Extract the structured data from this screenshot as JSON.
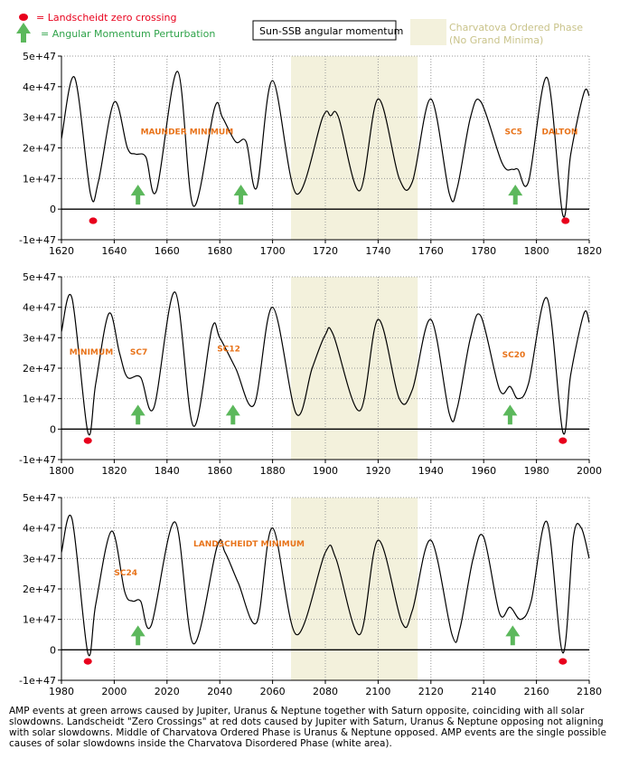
{
  "legend": {
    "red_dot_label": "= Landscheidt zero crossing",
    "green_arrow_label": "= Angular Momentum Perturbation",
    "line_label": "Sun-SSB angular momentum",
    "phase_label_1": "Charvatova Ordered Phase",
    "phase_label_2": "(No Grand Minima)"
  },
  "colors": {
    "red": "#e8001c",
    "green": "#5cb85c",
    "orange": "#e8731a",
    "phase_band": "#f3f1dc",
    "line": "#000000"
  },
  "caption": "AMP events at green arrows caused by Jupiter, Uranus & Neptune together with Saturn opposite, coinciding with all solar slowdowns. Landscheidt \"Zero Crossings\" at red dots caused by Jupiter with Saturn, Uranus & Neptune opposing not aligning with solar slowdowns. Middle of Charvatova Ordered Phase is Uranus & Neptune opposed. AMP events are the single possible causes of solar slowdowns inside the Charvatova Disordered Phase (white area).",
  "chart_data": [
    {
      "type": "line",
      "y_tick_labels": [
        "5e+47",
        "4e+47",
        "3e+47",
        "2e+47",
        "1e+47",
        "0",
        "-1e+47"
      ],
      "x_tick_labels": [
        "1620",
        "1640",
        "1660",
        "1680",
        "1700",
        "1720",
        "1740",
        "1760",
        "1780",
        "1800",
        "1820"
      ],
      "xlim": [
        1620,
        1820
      ],
      "ylim": [
        -1,
        5
      ],
      "y_unit_note": "values in units of 1e+47",
      "grid": true,
      "shaded_phase": [
        1707,
        1755
      ],
      "series": [
        {
          "x": [
            1620,
            1625,
            1631,
            1634,
            1640,
            1645,
            1648,
            1652,
            1656,
            1664,
            1670,
            1678,
            1681,
            1686,
            1690,
            1694,
            1700,
            1709,
            1719,
            1722,
            1725,
            1733,
            1740,
            1748,
            1753,
            1760,
            1767,
            1770,
            1775,
            1779,
            1787,
            1791,
            1793,
            1797,
            1804,
            1810,
            1813,
            1818,
            1820
          ],
          "y": [
            2.3,
            4.3,
            0.5,
            0.9,
            3.5,
            2.0,
            1.8,
            1.7,
            0.6,
            4.5,
            0.1,
            3.3,
            3.0,
            2.2,
            2.2,
            0.7,
            4.2,
            0.5,
            3.0,
            3.05,
            3.0,
            0.6,
            3.6,
            1.0,
            0.9,
            3.6,
            0.5,
            0.7,
            3.0,
            3.5,
            1.5,
            1.3,
            1.3,
            0.9,
            4.3,
            -0.2,
            1.8,
            3.8,
            3.7
          ]
        }
      ],
      "red_dots_x": [
        1632,
        1811
      ],
      "green_arrows_x": [
        1649,
        1688,
        1792
      ],
      "annotations": [
        {
          "text": "MAUNDER MINIMUM",
          "x": 1650,
          "y": 2.45
        },
        {
          "text": "SC5",
          "x": 1788,
          "y": 2.45
        },
        {
          "text": "DALTON",
          "x": 1802,
          "y": 2.45
        }
      ]
    },
    {
      "type": "line",
      "y_tick_labels": [
        "5e+47",
        "4e+47",
        "3e+47",
        "2e+47",
        "1e+47",
        "0",
        "-1e+47"
      ],
      "x_tick_labels": [
        "1800",
        "1820",
        "1840",
        "1860",
        "1880",
        "1900",
        "1920",
        "1940",
        "1960",
        "1980",
        "2000"
      ],
      "xlim": [
        1800,
        2000
      ],
      "ylim": [
        -1,
        5
      ],
      "y_unit_note": "values in units of 1e+47",
      "grid": true,
      "shaded_phase": [
        1887,
        1935
      ],
      "series": [
        {
          "x": [
            1800,
            1804,
            1810,
            1813,
            1818,
            1822,
            1825,
            1830,
            1835,
            1843,
            1850,
            1857,
            1860,
            1866,
            1873,
            1880,
            1889,
            1895,
            1900,
            1903,
            1913,
            1920,
            1928,
            1933,
            1940,
            1947,
            1950,
            1955,
            1959,
            1966,
            1970,
            1973,
            1977,
            1984,
            1990,
            1993,
            1998,
            2000
          ],
          "y": [
            3.2,
            4.3,
            -0.1,
            1.5,
            3.8,
            2.5,
            1.7,
            1.7,
            0.7,
            4.5,
            0.1,
            3.3,
            3.0,
            2.0,
            0.8,
            4.0,
            0.5,
            2.0,
            3.1,
            3.1,
            0.6,
            3.6,
            1.0,
            1.3,
            3.6,
            0.5,
            0.7,
            3.0,
            3.7,
            1.3,
            1.4,
            1.0,
            1.5,
            4.3,
            -0.1,
            1.8,
            3.8,
            3.5
          ]
        }
      ],
      "red_dots_x": [
        1810,
        1990
      ],
      "green_arrows_x": [
        1829,
        1865,
        1970
      ],
      "annotations": [
        {
          "text": "MINIMUM",
          "x": 1803,
          "y": 2.45
        },
        {
          "text": "SC7",
          "x": 1826,
          "y": 2.45
        },
        {
          "text": "SC12",
          "x": 1859,
          "y": 2.55
        },
        {
          "text": "SC20",
          "x": 1967,
          "y": 2.35
        }
      ]
    },
    {
      "type": "line",
      "y_tick_labels": [
        "5e+47",
        "4e+47",
        "3e+47",
        "2e+47",
        "1e+47",
        "0",
        "-1e+47"
      ],
      "x_tick_labels": [
        "1980",
        "2000",
        "2020",
        "2040",
        "2060",
        "2080",
        "2100",
        "2120",
        "2140",
        "2160",
        "2180"
      ],
      "xlim": [
        1980,
        2180
      ],
      "ylim": [
        -1,
        5
      ],
      "y_unit_note": "values in units of 1e+47",
      "grid": true,
      "shaded_phase": [
        2067,
        2115
      ],
      "series": [
        {
          "x": [
            1980,
            1984,
            1990,
            1993,
            1999,
            2004,
            2007,
            2010,
            2014,
            2023,
            2030,
            2039,
            2042,
            2047,
            2054,
            2060,
            2069,
            2080,
            2084,
            2093,
            2100,
            2109,
            2113,
            2120,
            2128,
            2131,
            2136,
            2140,
            2146,
            2150,
            2154,
            2158,
            2164,
            2170,
            2174,
            2177,
            2180
          ],
          "y": [
            3.2,
            4.3,
            -0.1,
            1.5,
            3.9,
            1.9,
            1.6,
            1.6,
            0.8,
            4.2,
            0.2,
            3.4,
            3.2,
            2.2,
            0.9,
            4.0,
            0.5,
            3.2,
            3.0,
            0.5,
            3.6,
            0.9,
            1.3,
            3.6,
            0.5,
            0.7,
            3.0,
            3.7,
            1.2,
            1.4,
            1.0,
            1.6,
            4.2,
            -0.1,
            3.7,
            4.0,
            3.0
          ]
        }
      ],
      "red_dots_x": [
        1990,
        2170
      ],
      "green_arrows_x": [
        2009,
        2151
      ],
      "annotations": [
        {
          "text": "LANDSCHEIDT MINIMUM",
          "x": 2030,
          "y": 3.4
        },
        {
          "text": "SC24",
          "x": 2000,
          "y": 2.45
        }
      ]
    }
  ]
}
